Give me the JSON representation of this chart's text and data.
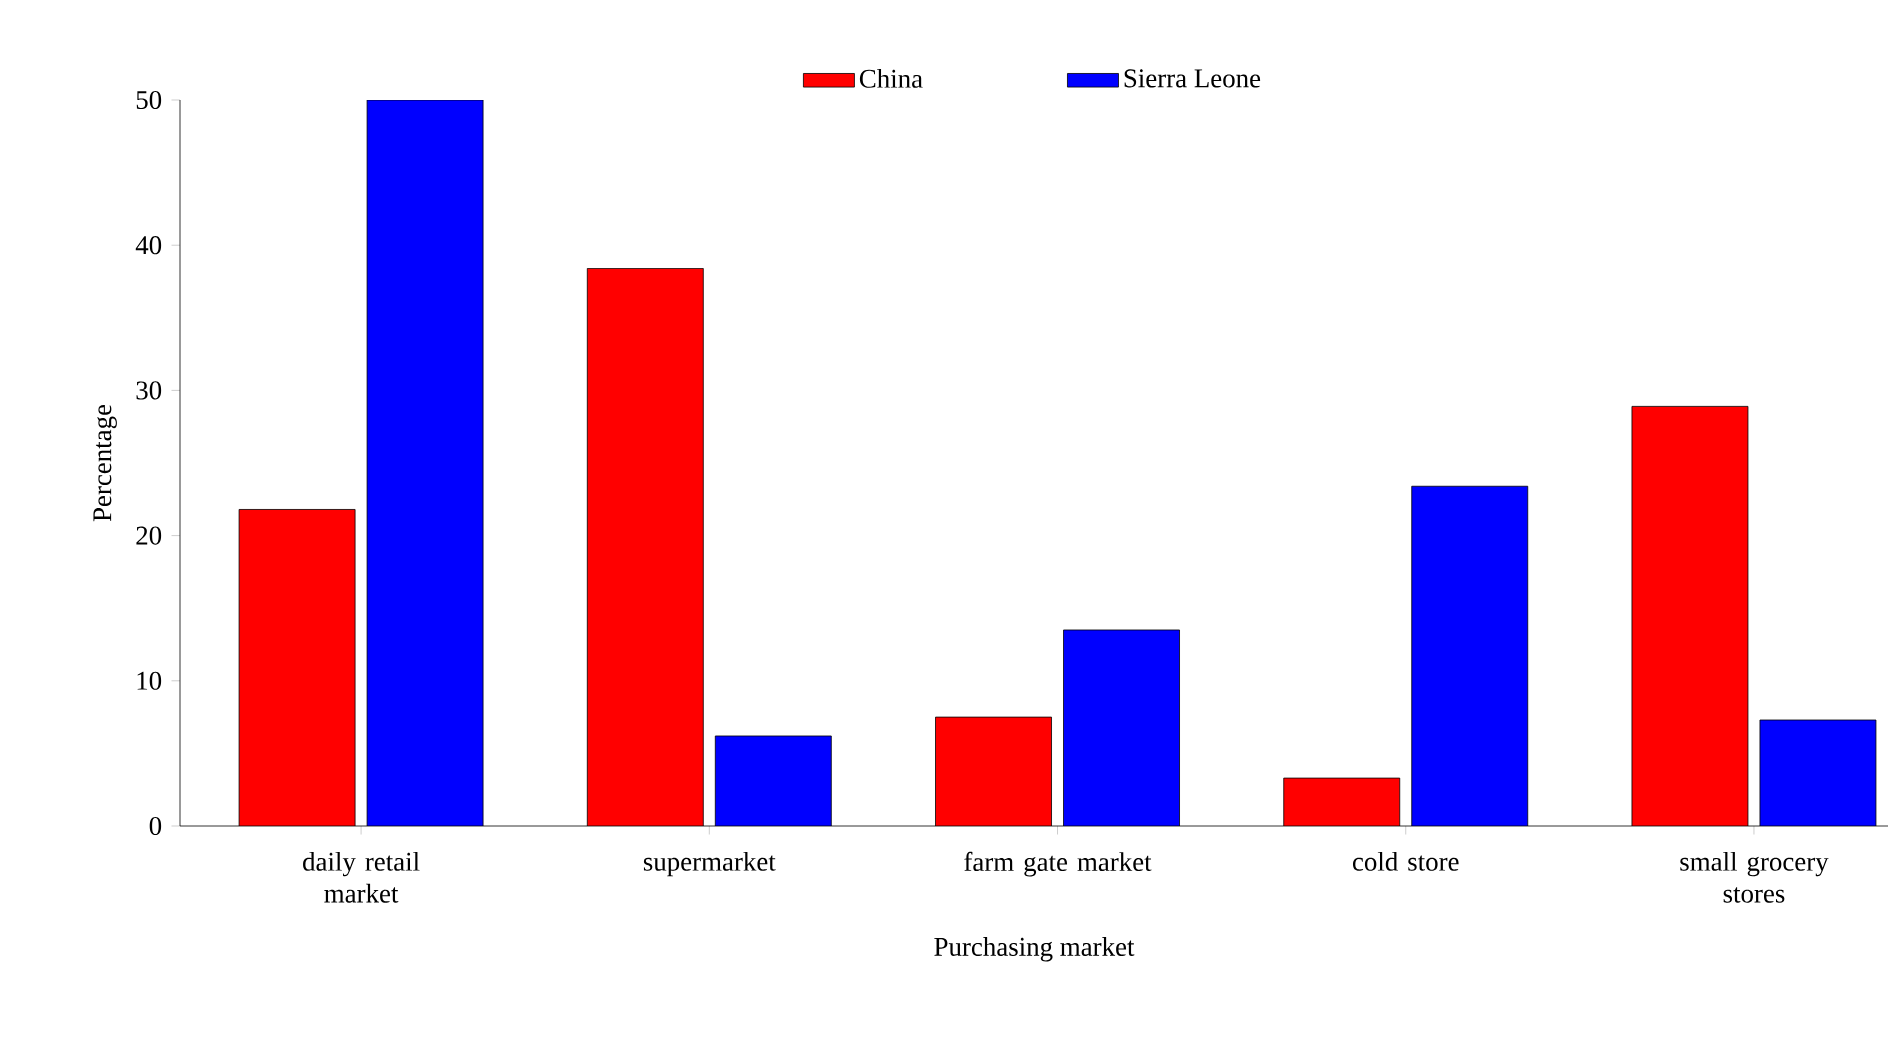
{
  "chart_data": {
    "type": "bar",
    "xlabel": "Purchasing market",
    "ylabel": "Percentage",
    "categories": [
      "daily retail market",
      "supermarket",
      "farm gate market",
      "cold store",
      "small grocery stores"
    ],
    "series": [
      {
        "name": "China",
        "color": "#ff0000",
        "values": [
          21.8,
          38.4,
          7.5,
          3.3,
          28.9
        ]
      },
      {
        "name": "Sierra Leone",
        "color": "#0000ff",
        "values": [
          50,
          6.2,
          13.5,
          23.4,
          7.3
        ]
      }
    ],
    "ylim": [
      0,
      50
    ],
    "yticks": [
      0,
      10,
      20,
      30,
      40,
      50
    ],
    "legend": "top"
  }
}
